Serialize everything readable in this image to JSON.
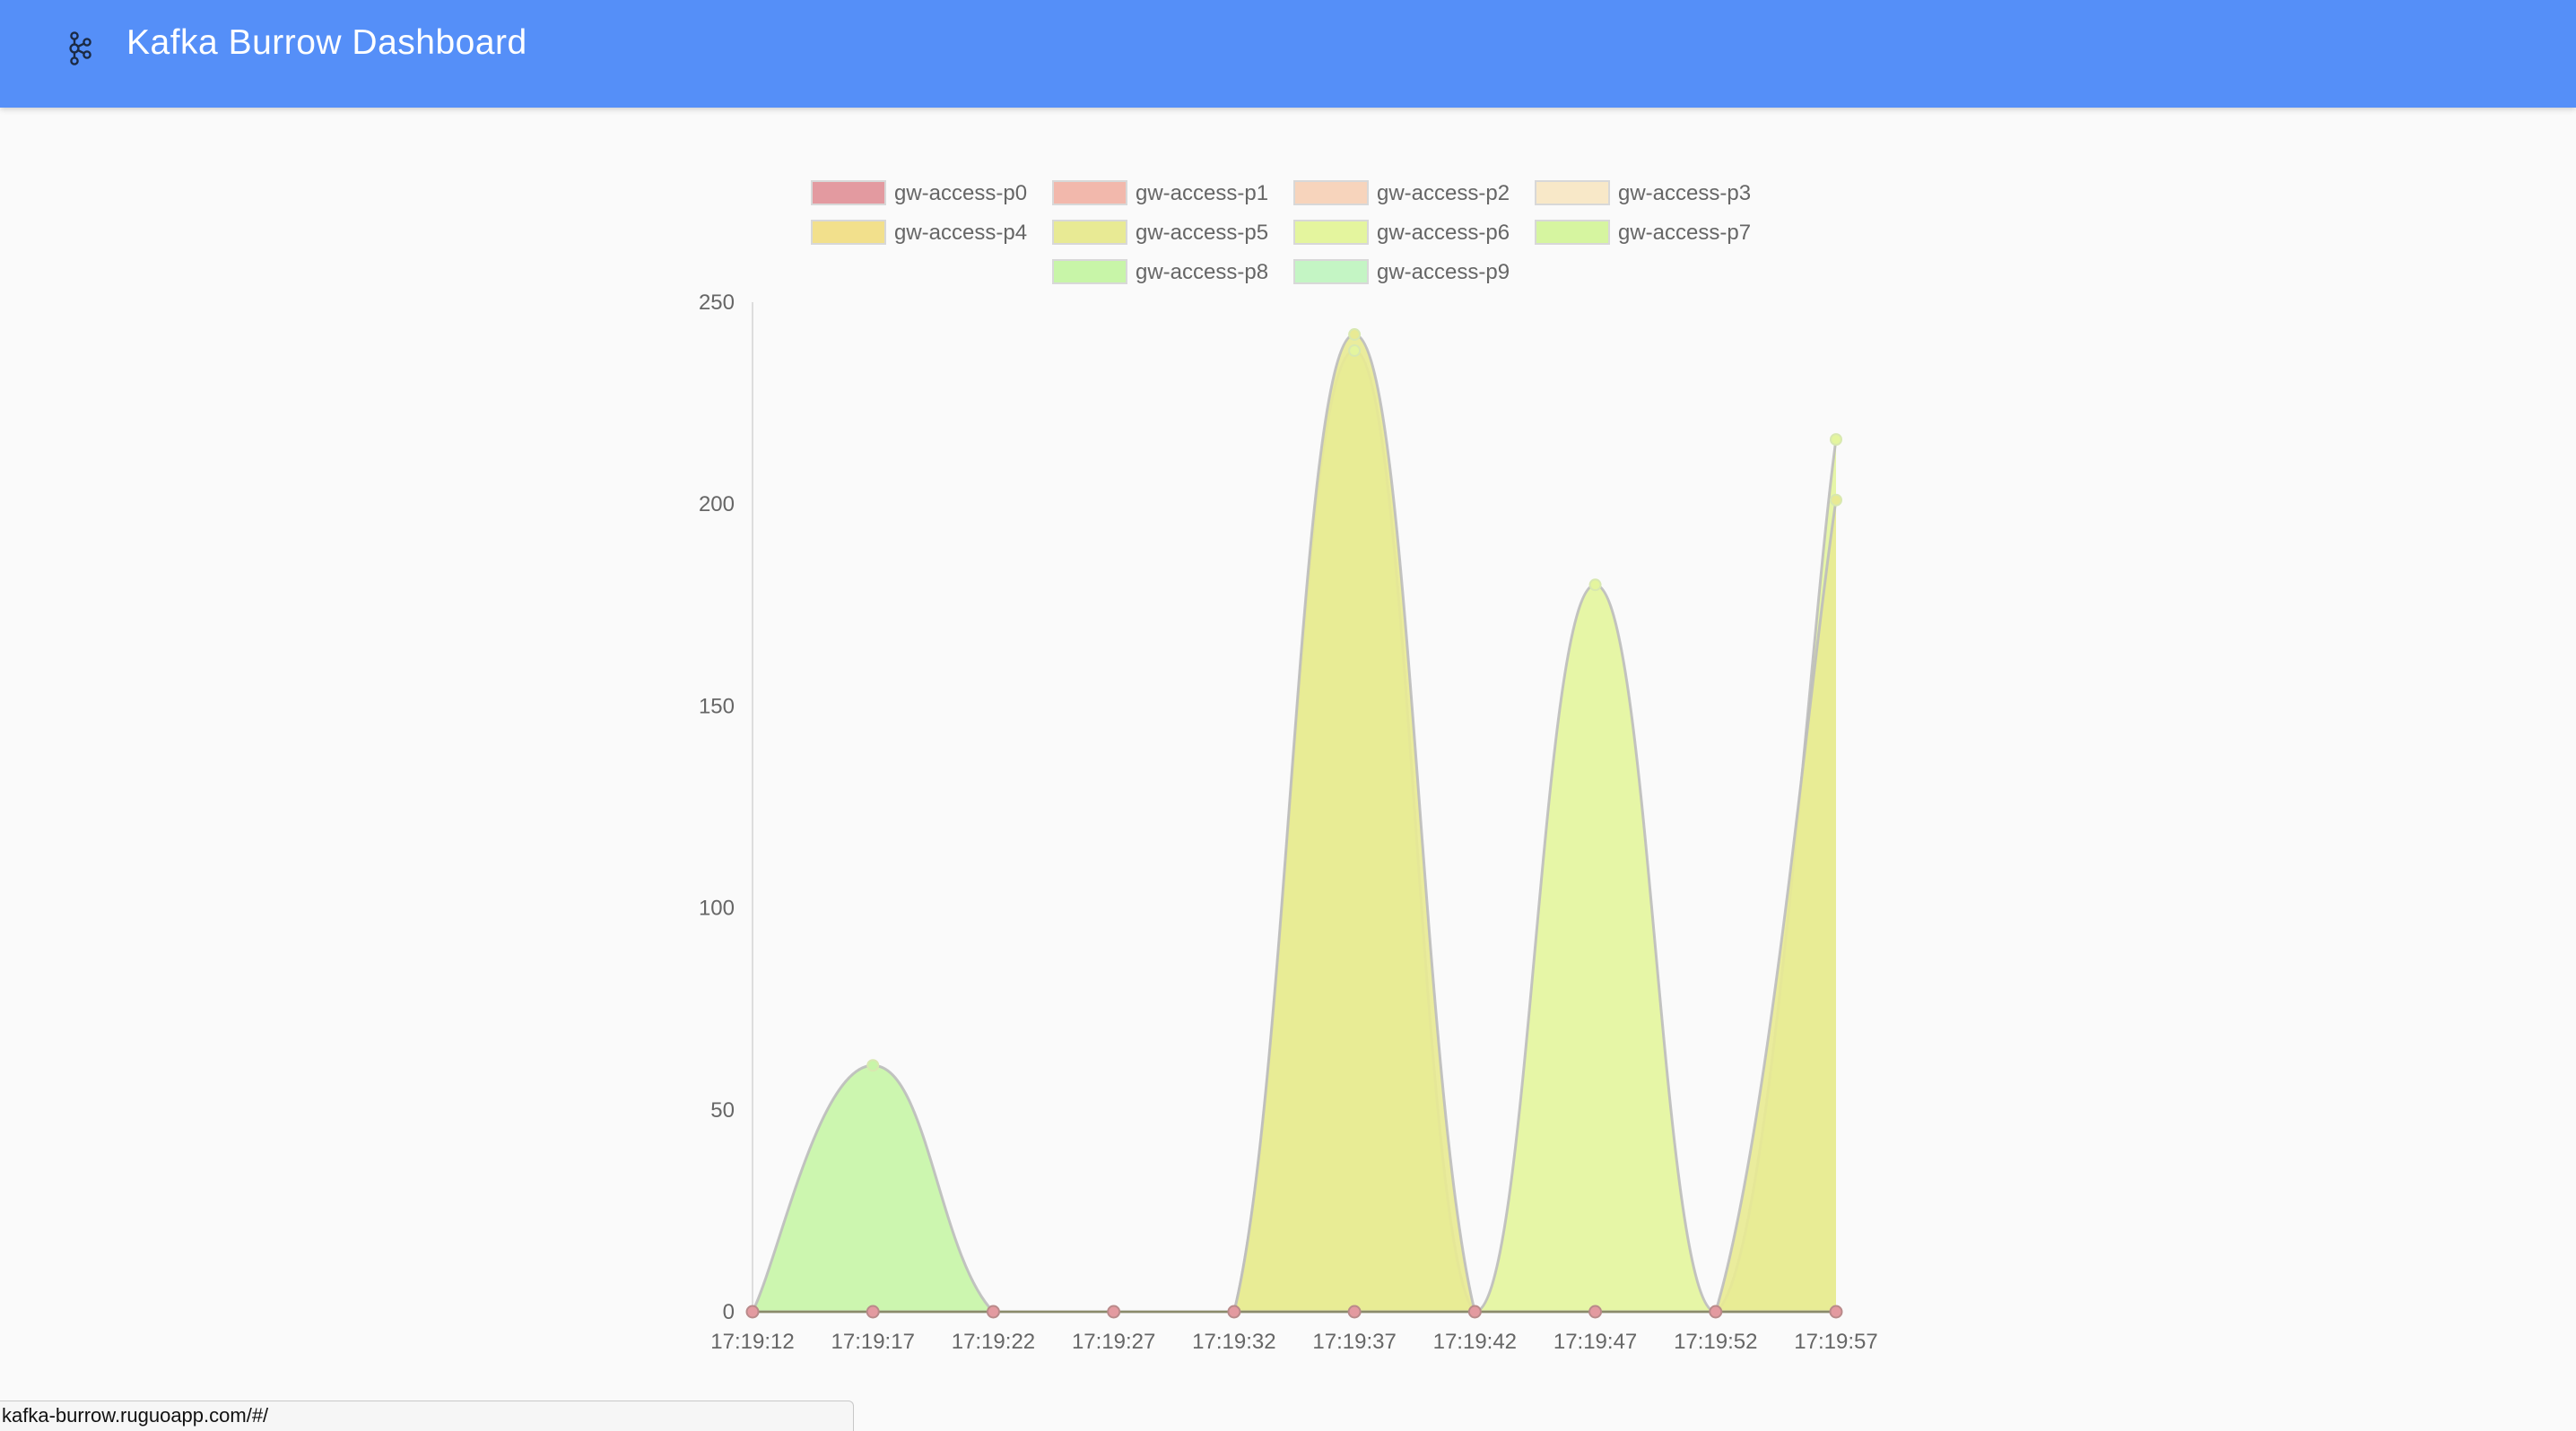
{
  "app": {
    "title": "Kafka Burrow Dashboard",
    "icon": "kafka-logo-icon",
    "header_color": "#558ff8"
  },
  "status_bar": {
    "url": "kafka-burrow.ruguoapp.com/#/"
  },
  "chart_data": {
    "type": "area",
    "title": "",
    "xlabel": "",
    "ylabel": "",
    "legend_position": "top-center",
    "grid": false,
    "line_smoothing": "curved",
    "ylim": [
      0,
      250
    ],
    "yticks": [
      0,
      50,
      100,
      150,
      200,
      250
    ],
    "x": [
      "17:19:12",
      "17:19:17",
      "17:19:22",
      "17:19:27",
      "17:19:32",
      "17:19:37",
      "17:19:42",
      "17:19:47",
      "17:19:52",
      "17:19:57"
    ],
    "series": [
      {
        "name": "gw-access-p0",
        "color": "#e39aa0",
        "values": [
          0,
          0,
          0,
          0,
          0,
          0,
          0,
          0,
          0,
          0
        ]
      },
      {
        "name": "gw-access-p1",
        "color": "#f2b8ac",
        "values": [
          0,
          0,
          0,
          0,
          0,
          0,
          0,
          0,
          0,
          0
        ]
      },
      {
        "name": "gw-access-p2",
        "color": "#f7d4bc",
        "values": [
          0,
          0,
          0,
          0,
          0,
          0,
          0,
          0,
          0,
          0
        ]
      },
      {
        "name": "gw-access-p3",
        "color": "#f8e8c8",
        "values": [
          0,
          0,
          0,
          0,
          0,
          0,
          0,
          0,
          0,
          0
        ]
      },
      {
        "name": "gw-access-p4",
        "color": "#f2e08c",
        "values": [
          0,
          0,
          0,
          0,
          0,
          0,
          0,
          0,
          0,
          0
        ]
      },
      {
        "name": "gw-access-p5",
        "color": "#e8ea94",
        "values": [
          0,
          0,
          0,
          0,
          0,
          242,
          0,
          0,
          0,
          201
        ]
      },
      {
        "name": "gw-access-p6",
        "color": "#e4f59e",
        "values": [
          0,
          0,
          0,
          0,
          0,
          238,
          0,
          180,
          0,
          216
        ]
      },
      {
        "name": "gw-access-p7",
        "color": "#d6f5a0",
        "values": [
          0,
          0,
          0,
          0,
          0,
          0,
          0,
          0,
          0,
          0
        ]
      },
      {
        "name": "gw-access-p8",
        "color": "#c8f5a8",
        "values": [
          0,
          61,
          0,
          0,
          0,
          0,
          0,
          0,
          0,
          0
        ]
      },
      {
        "name": "gw-access-p9",
        "color": "#c4f5c4",
        "values": [
          0,
          0,
          0,
          0,
          0,
          0,
          0,
          0,
          0,
          0
        ]
      }
    ]
  }
}
